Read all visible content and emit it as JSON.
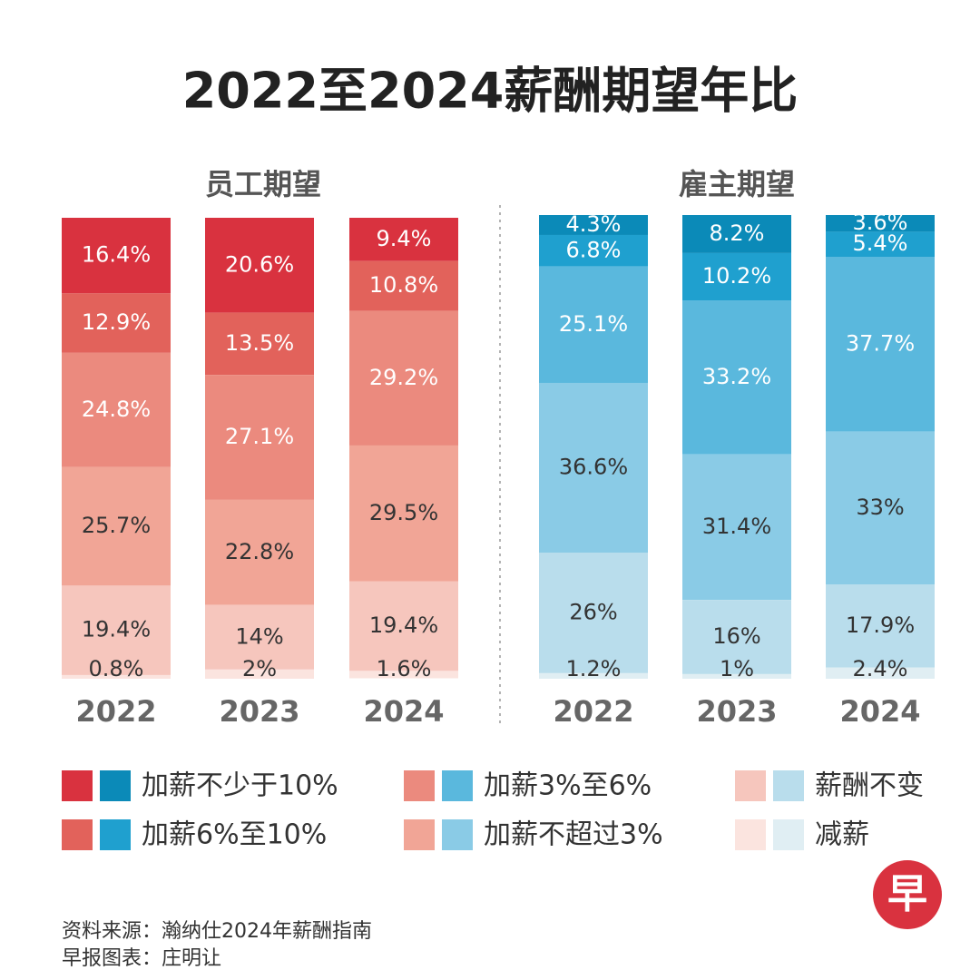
{
  "title": "2022至2024薪酬期望年比",
  "chart_data": [
    {
      "type": "stacked_bar",
      "title": "员工期望",
      "categories": [
        "2022",
        "2023",
        "2024"
      ],
      "ylim": [
        0,
        100
      ],
      "series": [
        {
          "name": "加薪不少于10%",
          "color": "#d9323f",
          "values": [
            16.4,
            20.6,
            9.4
          ],
          "value_labels": [
            "16.4%",
            "20.6%",
            "9.4%"
          ]
        },
        {
          "name": "加薪6%至10%",
          "color": "#e2625b",
          "values": [
            12.9,
            13.5,
            10.8
          ],
          "value_labels": [
            "12.9%",
            "13.5%",
            "10.8%"
          ]
        },
        {
          "name": "加薪3%至6%",
          "color": "#eb8a7e",
          "values": [
            24.8,
            27.1,
            29.2
          ],
          "value_labels": [
            "24.8%",
            "27.1%",
            "29.2%"
          ]
        },
        {
          "name": "加薪不超过3%",
          "color": "#f1a596",
          "values": [
            25.7,
            22.8,
            29.5
          ],
          "value_labels": [
            "25.7%",
            "22.8%",
            "29.5%"
          ]
        },
        {
          "name": "薪酬不变",
          "color": "#f6c6bd",
          "values": [
            19.4,
            14,
            19.4
          ],
          "value_labels": [
            "19.4%",
            "14%",
            "19.4%"
          ]
        },
        {
          "name": "减薪",
          "color": "#fbe4df",
          "values": [
            0.8,
            2,
            1.6
          ],
          "value_labels": [
            "0.8%",
            "2%",
            "1.6%"
          ]
        }
      ]
    },
    {
      "type": "stacked_bar",
      "title": "雇主期望",
      "categories": [
        "2022",
        "2023",
        "2024"
      ],
      "ylim": [
        0,
        100
      ],
      "series": [
        {
          "name": "加薪不少于10%",
          "color": "#0b8ab8",
          "values": [
            4.3,
            8.2,
            3.6
          ],
          "value_labels": [
            "4.3%",
            "8.2%",
            "3.6%"
          ]
        },
        {
          "name": "加薪6%至10%",
          "color": "#1fa0cf",
          "values": [
            6.8,
            10.2,
            5.4
          ],
          "value_labels": [
            "6.8%",
            "10.2%",
            "5.4%"
          ]
        },
        {
          "name": "加薪3%至6%",
          "color": "#5ab8dd",
          "values": [
            25.1,
            33.2,
            37.7
          ],
          "value_labels": [
            "25.1%",
            "33.2%",
            "37.7%"
          ]
        },
        {
          "name": "加薪不超过3%",
          "color": "#8acbe6",
          "values": [
            36.6,
            31.4,
            33
          ],
          "value_labels": [
            "36.6%",
            "31.4%",
            "33%"
          ]
        },
        {
          "name": "薪酬不变",
          "color": "#b9ddec",
          "values": [
            26,
            16,
            17.9
          ],
          "value_labels": [
            "26%",
            "16%",
            "17.9%"
          ]
        },
        {
          "name": "减薪",
          "color": "#e0eef3",
          "values": [
            1.2,
            1,
            2.4
          ],
          "value_labels": [
            "1.2%",
            "1%",
            "2.4%"
          ]
        }
      ]
    }
  ],
  "logo": "早",
  "footer": [
    "资料来源：瀚纳仕2024年薪酬指南",
    "早报图表：庄明让"
  ]
}
